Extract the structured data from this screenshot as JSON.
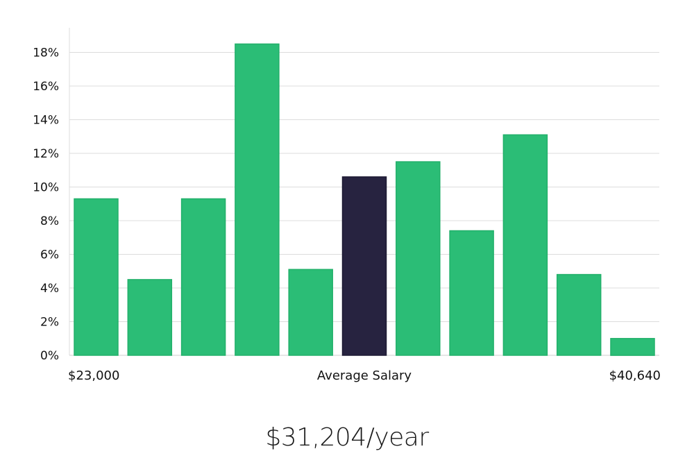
{
  "chart_data": {
    "type": "bar",
    "title": "",
    "xlabel": "Average Salary",
    "ylabel": "",
    "x_min_label": "$23,000",
    "x_max_label": "$40,640",
    "y_ticks": [
      "0%",
      "2%",
      "4%",
      "6%",
      "8%",
      "10%",
      "12%",
      "14%",
      "16%",
      "18%"
    ],
    "ylim": [
      0,
      19.5
    ],
    "grid": true,
    "values": [
      9.3,
      4.5,
      9.3,
      18.5,
      5.1,
      10.6,
      11.5,
      7.4,
      13.1,
      4.8,
      1.0
    ],
    "highlight_index": 5,
    "colors": {
      "bar": "#2bbd76",
      "highlight": "#272340",
      "grid": "#dcdcdc",
      "axis": "#cccccc"
    }
  },
  "summary": {
    "salary_label": "$31,204/year"
  }
}
